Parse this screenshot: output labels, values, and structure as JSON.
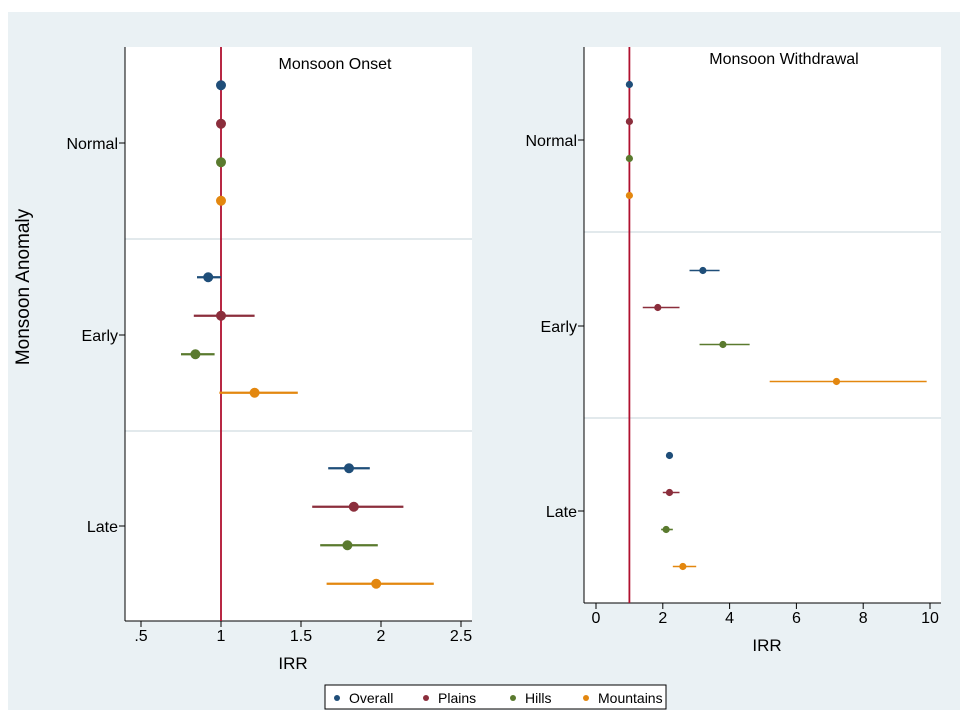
{
  "y_axis_title": "Monsoon Anomaly",
  "legend": [
    {
      "name": "Overall",
      "color": "#1f4e79"
    },
    {
      "name": "Plains",
      "color": "#8b2e3c"
    },
    {
      "name": "Hills",
      "color": "#5a7a2e"
    },
    {
      "name": "Mountains",
      "color": "#e3870f"
    }
  ],
  "colors": {
    "background": "#eaf1f4",
    "reference_line": "#b0102f",
    "separator": "#d9e2e6"
  },
  "chart_data": [
    {
      "type": "scatter",
      "subtype": "coefficient-plot",
      "title": "Monsoon Onset",
      "xlabel": "IRR",
      "ylabel": "Monsoon Anomaly",
      "xlim": [
        0.4,
        2.6
      ],
      "xticks": [
        0.5,
        1,
        1.5,
        2,
        2.5
      ],
      "xtick_labels": [
        ".5",
        "1",
        "1.5",
        "2",
        "2.5"
      ],
      "reference_x": 1,
      "groups": [
        "Normal",
        "Early",
        "Late"
      ],
      "series": [
        {
          "name": "Overall",
          "points": [
            {
              "group": "Normal",
              "est": 1.0,
              "lo": 1.0,
              "hi": 1.0
            },
            {
              "group": "Early",
              "est": 0.92,
              "lo": 0.85,
              "hi": 1.0
            },
            {
              "group": "Late",
              "est": 1.8,
              "lo": 1.67,
              "hi": 1.93
            }
          ]
        },
        {
          "name": "Plains",
          "points": [
            {
              "group": "Normal",
              "est": 1.0,
              "lo": 1.0,
              "hi": 1.0
            },
            {
              "group": "Early",
              "est": 1.0,
              "lo": 0.83,
              "hi": 1.21
            },
            {
              "group": "Late",
              "est": 1.83,
              "lo": 1.57,
              "hi": 2.14
            }
          ]
        },
        {
          "name": "Hills",
          "points": [
            {
              "group": "Normal",
              "est": 1.0,
              "lo": 1.0,
              "hi": 1.0
            },
            {
              "group": "Early",
              "est": 0.84,
              "lo": 0.75,
              "hi": 0.96
            },
            {
              "group": "Late",
              "est": 1.79,
              "lo": 1.62,
              "hi": 1.98
            }
          ]
        },
        {
          "name": "Mountains",
          "points": [
            {
              "group": "Normal",
              "est": 1.0,
              "lo": 1.0,
              "hi": 1.0
            },
            {
              "group": "Early",
              "est": 1.21,
              "lo": 0.99,
              "hi": 1.48
            },
            {
              "group": "Late",
              "est": 1.97,
              "lo": 1.66,
              "hi": 2.33
            }
          ]
        }
      ]
    },
    {
      "type": "scatter",
      "subtype": "coefficient-plot",
      "title": "Monsoon Withdrawal",
      "xlabel": "IRR",
      "xlim": [
        -0.5,
        10.2
      ],
      "xticks": [
        0,
        2,
        4,
        6,
        8,
        10
      ],
      "xtick_labels": [
        "0",
        "2",
        "4",
        "6",
        "8",
        "10"
      ],
      "reference_x": 1,
      "groups": [
        "Normal",
        "Early",
        "Late"
      ],
      "series": [
        {
          "name": "Overall",
          "points": [
            {
              "group": "Normal",
              "est": 1.0,
              "lo": 1.0,
              "hi": 1.0
            },
            {
              "group": "Early",
              "est": 3.2,
              "lo": 2.8,
              "hi": 3.7
            },
            {
              "group": "Late",
              "est": 2.2,
              "lo": 2.1,
              "hi": 2.3
            }
          ]
        },
        {
          "name": "Plains",
          "points": [
            {
              "group": "Normal",
              "est": 1.0,
              "lo": 1.0,
              "hi": 1.0
            },
            {
              "group": "Early",
              "est": 1.85,
              "lo": 1.4,
              "hi": 2.5
            },
            {
              "group": "Late",
              "est": 2.2,
              "lo": 2.0,
              "hi": 2.5
            }
          ]
        },
        {
          "name": "Hills",
          "points": [
            {
              "group": "Normal",
              "est": 1.0,
              "lo": 1.0,
              "hi": 1.0
            },
            {
              "group": "Early",
              "est": 3.8,
              "lo": 3.1,
              "hi": 4.6
            },
            {
              "group": "Late",
              "est": 2.1,
              "lo": 1.95,
              "hi": 2.3
            }
          ]
        },
        {
          "name": "Mountains",
          "points": [
            {
              "group": "Normal",
              "est": 1.0,
              "lo": 1.0,
              "hi": 1.0
            },
            {
              "group": "Early",
              "est": 7.2,
              "lo": 5.2,
              "hi": 9.9
            },
            {
              "group": "Late",
              "est": 2.6,
              "lo": 2.3,
              "hi": 3.0
            }
          ]
        }
      ]
    }
  ]
}
